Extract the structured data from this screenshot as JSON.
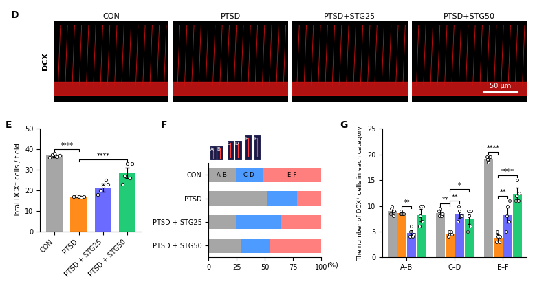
{
  "chart_data": [
    {
      "type": "image_grid",
      "panel": "D",
      "titles": [
        "CON",
        "PTSD",
        "PTSD+STG25",
        "PTSD+STG50"
      ],
      "ylabel": "DCX",
      "scale_bar": "50 µm"
    },
    {
      "type": "bar",
      "panel": "E",
      "categories": [
        "CON",
        "PTSD",
        "PTSD + STG25",
        "PTSD + STG50"
      ],
      "ylabel": "Total DCX⁺ cells / field",
      "values": [
        37,
        17,
        21.5,
        28.5
      ],
      "errors": [
        0.8,
        0.3,
        2,
        2.5
      ],
      "points": [
        [
          36,
          37.5,
          38,
          36.5,
          37
        ],
        [
          17,
          17.3,
          17,
          16.8,
          17
        ],
        [
          18,
          20,
          22,
          25,
          23
        ],
        [
          23,
          27,
          33,
          26,
          33
        ]
      ],
      "colors": [
        "#a6a6a6",
        "#ff8c1a",
        "#6b6bff",
        "#22cc77"
      ],
      "ylim": [
        0,
        50
      ],
      "yticks": [
        0,
        10,
        20,
        30,
        40,
        50
      ],
      "comparisons": [
        {
          "bars": [
            0,
            1
          ],
          "label": "****"
        },
        {
          "bars": [
            1,
            3
          ],
          "label": "****"
        }
      ]
    },
    {
      "type": "bar",
      "panel": "F",
      "orientation": "horizontal",
      "stacked": true,
      "categories": [
        "CON",
        "PTSD",
        "PTSD + STG25",
        "PTSD + STG50"
      ],
      "xlim": [
        0,
        100
      ],
      "xticks": [
        0,
        25,
        50,
        75,
        100
      ],
      "xlabel": "(%)",
      "inset_labels": [
        "A",
        "B",
        "C",
        "D",
        "E",
        "F"
      ],
      "series": [
        {
          "name": "A–B",
          "color": "#a6a6a6",
          "values": [
            24,
            52,
            24,
            29
          ]
        },
        {
          "name": "C–D",
          "color": "#4d9bff",
          "values": [
            24,
            27,
            40,
            25
          ]
        },
        {
          "name": "E–F",
          "color": "#ff7f7f",
          "values": [
            52,
            21,
            36,
            46
          ]
        }
      ]
    },
    {
      "type": "bar",
      "panel": "G",
      "categories": [
        "A–B",
        "C–D",
        "E–F"
      ],
      "ylabel": "The number of DCX⁺ cells in each category",
      "ylim": [
        0,
        25
      ],
      "yticks": [
        0,
        5,
        10,
        15,
        20,
        25
      ],
      "series": [
        {
          "color": "#a6a6a6",
          "values": [
            9,
            8.6,
            19.2
          ],
          "errors": [
            0.5,
            0.5,
            0.3
          ],
          "points": [
            [
              8.5,
              9.5,
              10,
              8,
              9
            ],
            [
              9,
              8,
              9.5,
              8,
              8.5
            ],
            [
              19.5,
              19,
              18.5,
              19.5,
              19.5
            ]
          ]
        },
        {
          "color": "#ff8c1a",
          "values": [
            8.6,
            4.6,
            3.8
          ],
          "errors": [
            0.2,
            0.3,
            0.7
          ],
          "points": [
            [
              8.5,
              9,
              8.5,
              8.5,
              8.5
            ],
            [
              4,
              5,
              4.5,
              5,
              4.5
            ],
            [
              3,
              5,
              4,
              3,
              4
            ]
          ]
        },
        {
          "color": "#6b6bff",
          "values": [
            4.7,
            8.4,
            8.2
          ],
          "errors": [
            0.6,
            0.8,
            1.5
          ],
          "points": [
            [
              4,
              5,
              6,
              4,
              4.5
            ],
            [
              7,
              10,
              9,
              8,
              8
            ],
            [
              5,
              8,
              10,
              7,
              11
            ]
          ]
        },
        {
          "color": "#22cc77",
          "values": [
            8.2,
            7.4,
            12.3
          ],
          "errors": [
            1.2,
            1,
            1.2
          ],
          "points": [
            [
              6,
              8,
              10,
              7,
              10
            ],
            [
              5,
              9,
              8,
              6,
              9
            ],
            [
              11,
              12,
              15,
              11,
              12.5
            ]
          ]
        }
      ],
      "comparisons": [
        {
          "category": 0,
          "bars": [
            1,
            2
          ],
          "label": "**"
        },
        {
          "category": 1,
          "bars": [
            0,
            1
          ],
          "label": "**"
        },
        {
          "category": 1,
          "bars": [
            1,
            2
          ],
          "label": "**"
        },
        {
          "category": 1,
          "bars": [
            1,
            3
          ],
          "label": "*"
        },
        {
          "category": 2,
          "bars": [
            0,
            1
          ],
          "label": "****"
        },
        {
          "category": 2,
          "bars": [
            1,
            2
          ],
          "label": "**"
        },
        {
          "category": 2,
          "bars": [
            1,
            3
          ],
          "label": "****"
        }
      ]
    }
  ]
}
